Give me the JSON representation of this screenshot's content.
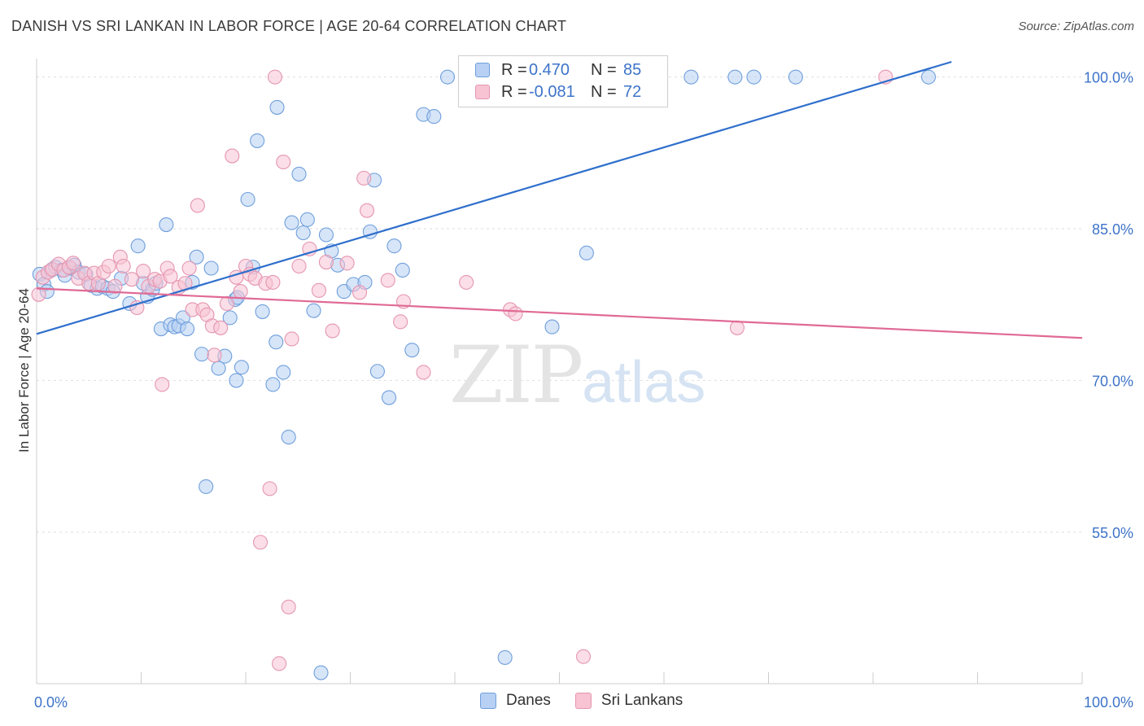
{
  "title": "DANISH VS SRI LANKAN IN LABOR FORCE | AGE 20-64 CORRELATION CHART",
  "source": "Source: ZipAtlas.com",
  "watermark": {
    "zip": "ZIP",
    "atlas": "atlas"
  },
  "legend": {
    "rows": [
      {
        "r_label": "R =",
        "r_value": "0.470",
        "n_label": "N =",
        "n_value": "85"
      },
      {
        "r_label": "R =",
        "r_value": "-0.081",
        "n_label": "N =",
        "n_value": "72"
      }
    ]
  },
  "bottom_legend": {
    "danes": "Danes",
    "sri_lankans": "Sri Lankans"
  },
  "colors": {
    "danes_fill": "#b7d0f3",
    "danes_stroke": "#6f9fdc",
    "danes_line": "#2f6fcc",
    "sri_fill": "#f8c3d3",
    "sri_stroke": "#e596b0",
    "sri_line": "#e06a95",
    "tick_label": "#3d73c9",
    "grid": "#dedede"
  },
  "chart_data": {
    "type": "scatter",
    "title": "DANISH VS SRI LANKAN IN LABOR FORCE | AGE 20-64 CORRELATION CHART",
    "xlabel": "",
    "ylabel": "In Labor Force | Age 20-64",
    "xlim": [
      0,
      100
    ],
    "ylim": [
      40.5,
      101.5
    ],
    "x_tick_labels": [
      "0.0%",
      "100.0%"
    ],
    "y_ticks": [
      55,
      70,
      85,
      100
    ],
    "y_tick_labels": [
      "55.0%",
      "70.0%",
      "85.0%",
      "100.0%"
    ],
    "grid": true,
    "legend_position": "top-center",
    "series": [
      {
        "name": "Danes",
        "r": 0.47,
        "n": 85,
        "trend": [
          [
            0,
            74.6
          ],
          [
            87.5,
            101.5
          ]
        ],
        "points": [
          [
            0.3,
            80.5
          ],
          [
            0.7,
            79.5
          ],
          [
            1.0,
            78.8
          ],
          [
            1.4,
            80.9
          ],
          [
            1.8,
            81.2
          ],
          [
            2.4,
            80.9
          ],
          [
            2.7,
            80.4
          ],
          [
            3.2,
            81.1
          ],
          [
            3.6,
            81.4
          ],
          [
            4.0,
            80.7
          ],
          [
            4.7,
            80.5
          ],
          [
            5.2,
            79.4
          ],
          [
            5.8,
            79.1
          ],
          [
            6.3,
            79.3
          ],
          [
            6.8,
            79.1
          ],
          [
            7.3,
            78.8
          ],
          [
            8.1,
            80.1
          ],
          [
            8.9,
            77.6
          ],
          [
            9.7,
            83.3
          ],
          [
            10.2,
            79.6
          ],
          [
            10.6,
            78.3
          ],
          [
            11.1,
            79.0
          ],
          [
            11.9,
            75.1
          ],
          [
            12.4,
            85.4
          ],
          [
            12.8,
            75.5
          ],
          [
            13.2,
            75.3
          ],
          [
            13.6,
            75.4
          ],
          [
            14.0,
            76.2
          ],
          [
            14.4,
            75.1
          ],
          [
            14.9,
            79.7
          ],
          [
            15.3,
            82.2
          ],
          [
            15.8,
            72.6
          ],
          [
            16.2,
            59.5
          ],
          [
            16.7,
            81.1
          ],
          [
            17.4,
            71.2
          ],
          [
            18.0,
            72.4
          ],
          [
            18.5,
            76.2
          ],
          [
            19.0,
            78.0
          ],
          [
            19.1,
            70.0
          ],
          [
            19.2,
            78.2
          ],
          [
            19.6,
            71.3
          ],
          [
            20.2,
            87.9
          ],
          [
            20.7,
            81.2
          ],
          [
            21.1,
            93.7
          ],
          [
            21.6,
            76.8
          ],
          [
            22.6,
            69.6
          ],
          [
            22.9,
            73.8
          ],
          [
            23.0,
            97.0
          ],
          [
            23.6,
            70.8
          ],
          [
            24.1,
            64.4
          ],
          [
            24.4,
            85.6
          ],
          [
            25.1,
            90.4
          ],
          [
            25.5,
            84.6
          ],
          [
            25.9,
            85.9
          ],
          [
            26.5,
            76.9
          ],
          [
            27.2,
            41.1
          ],
          [
            27.7,
            84.4
          ],
          [
            28.2,
            82.8
          ],
          [
            28.8,
            81.4
          ],
          [
            29.4,
            78.8
          ],
          [
            30.3,
            79.5
          ],
          [
            31.4,
            79.7
          ],
          [
            31.9,
            84.7
          ],
          [
            32.3,
            89.8
          ],
          [
            32.6,
            70.9
          ],
          [
            33.7,
            68.3
          ],
          [
            34.2,
            83.3
          ],
          [
            35.0,
            80.9
          ],
          [
            35.9,
            73.0
          ],
          [
            37.0,
            96.3
          ],
          [
            38.0,
            96.1
          ],
          [
            39.3,
            100.0
          ],
          [
            41.6,
            99.4
          ],
          [
            44.2,
            100.0
          ],
          [
            44.8,
            42.6
          ],
          [
            49.3,
            75.3
          ],
          [
            50.3,
            100.0
          ],
          [
            52.6,
            82.6
          ],
          [
            62.6,
            100.0
          ],
          [
            66.8,
            100.0
          ],
          [
            68.6,
            100.0
          ],
          [
            72.6,
            100.0
          ],
          [
            85.3,
            100.0
          ],
          [
            49.5,
            100.0
          ],
          [
            11.4,
            79.6
          ]
        ]
      },
      {
        "name": "Sri Lankans",
        "r": -0.081,
        "n": 72,
        "trend": [
          [
            0,
            79.1
          ],
          [
            100,
            74.2
          ]
        ],
        "points": [
          [
            0.2,
            78.5
          ],
          [
            0.6,
            80.2
          ],
          [
            1.1,
            80.7
          ],
          [
            1.5,
            81.0
          ],
          [
            2.1,
            81.5
          ],
          [
            2.6,
            80.9
          ],
          [
            3.1,
            81.2
          ],
          [
            3.5,
            81.6
          ],
          [
            4.0,
            80.1
          ],
          [
            4.6,
            80.6
          ],
          [
            5.0,
            79.6
          ],
          [
            5.5,
            80.6
          ],
          [
            5.9,
            79.6
          ],
          [
            6.4,
            80.7
          ],
          [
            6.9,
            81.3
          ],
          [
            7.5,
            79.3
          ],
          [
            8.0,
            82.2
          ],
          [
            8.3,
            81.3
          ],
          [
            9.1,
            80.0
          ],
          [
            9.6,
            77.2
          ],
          [
            10.2,
            80.8
          ],
          [
            10.7,
            79.3
          ],
          [
            11.3,
            80.0
          ],
          [
            11.8,
            79.8
          ],
          [
            12.0,
            69.6
          ],
          [
            12.5,
            81.1
          ],
          [
            12.8,
            80.3
          ],
          [
            13.6,
            79.2
          ],
          [
            14.2,
            79.6
          ],
          [
            14.6,
            81.1
          ],
          [
            14.9,
            77.0
          ],
          [
            15.4,
            87.3
          ],
          [
            15.9,
            77.0
          ],
          [
            16.3,
            76.5
          ],
          [
            16.8,
            75.4
          ],
          [
            17.0,
            72.5
          ],
          [
            17.6,
            75.2
          ],
          [
            18.2,
            77.6
          ],
          [
            18.7,
            92.2
          ],
          [
            19.1,
            80.2
          ],
          [
            19.5,
            78.8
          ],
          [
            20.0,
            81.3
          ],
          [
            20.4,
            80.5
          ],
          [
            20.9,
            80.1
          ],
          [
            21.4,
            54.0
          ],
          [
            21.9,
            79.6
          ],
          [
            22.3,
            59.3
          ],
          [
            22.6,
            79.7
          ],
          [
            22.8,
            100.0
          ],
          [
            23.2,
            42.0
          ],
          [
            23.6,
            91.6
          ],
          [
            24.1,
            47.6
          ],
          [
            24.4,
            74.1
          ],
          [
            25.1,
            81.3
          ],
          [
            26.1,
            83.0
          ],
          [
            27.0,
            78.9
          ],
          [
            27.7,
            81.7
          ],
          [
            28.3,
            74.9
          ],
          [
            29.7,
            81.6
          ],
          [
            30.9,
            78.7
          ],
          [
            31.3,
            90.0
          ],
          [
            31.6,
            86.8
          ],
          [
            33.6,
            79.9
          ],
          [
            34.8,
            75.8
          ],
          [
            35.1,
            77.8
          ],
          [
            37.0,
            70.8
          ],
          [
            41.1,
            79.7
          ],
          [
            45.3,
            77.0
          ],
          [
            45.8,
            76.6
          ],
          [
            52.3,
            42.7
          ],
          [
            67.0,
            75.2
          ],
          [
            81.2,
            100.0
          ]
        ]
      }
    ]
  }
}
